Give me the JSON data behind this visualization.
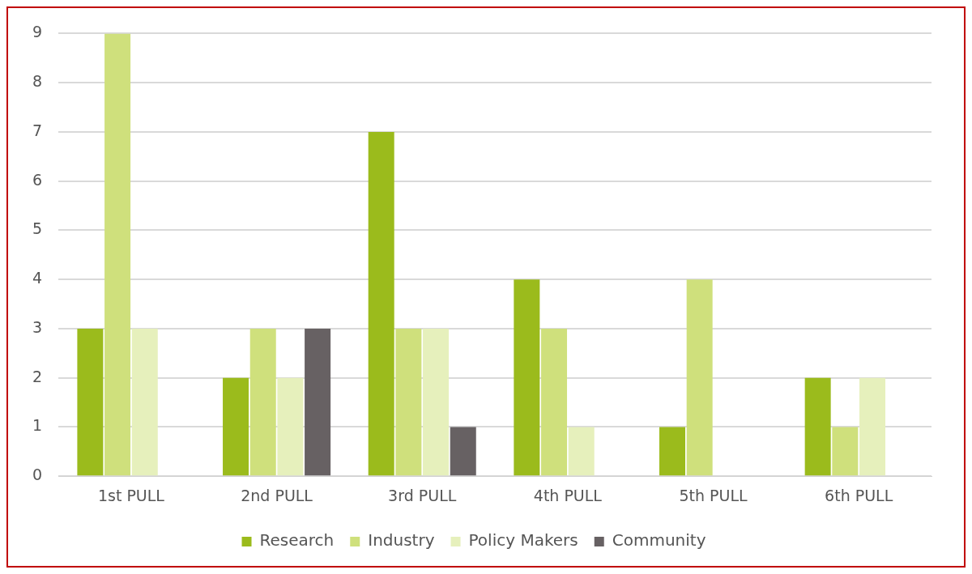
{
  "chart_data": {
    "type": "bar",
    "categories": [
      "1st PULL",
      "2nd PULL",
      "3rd PULL",
      "4th PULL",
      "5th PULL",
      "6th PULL"
    ],
    "series": [
      {
        "name": "Research",
        "color": "#9bbb1c",
        "values": [
          3,
          2,
          7,
          4,
          1,
          2
        ]
      },
      {
        "name": "Industry",
        "color": "#cfe07c",
        "values": [
          9,
          3,
          3,
          3,
          4,
          1
        ]
      },
      {
        "name": "Policy Makers",
        "color": "#e6f0bc",
        "values": [
          3,
          2,
          3,
          1,
          null,
          2
        ]
      },
      {
        "name": "Community",
        "color": "#676163",
        "values": [
          null,
          3,
          1,
          null,
          null,
          null
        ]
      }
    ],
    "ylim": [
      0,
      9
    ],
    "yticks": [
      0,
      1,
      2,
      3,
      4,
      5,
      6,
      7,
      8,
      9
    ],
    "grid": "y",
    "legend": "bottom"
  }
}
